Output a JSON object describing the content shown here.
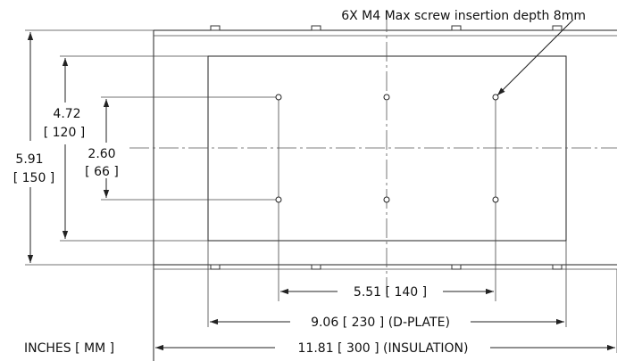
{
  "callout": {
    "holes": "6X M4 Max screw insertion depth 8mm"
  },
  "dimensions": {
    "height_outer": {
      "inches": "5.91",
      "mm": "[ 150 ]"
    },
    "height_middle": {
      "inches": "4.72",
      "mm": "[ 120 ]"
    },
    "height_inner": {
      "inches": "2.60",
      "mm": "[ 66 ]"
    },
    "width_holes": {
      "text": "5.51 [ 140 ]"
    },
    "width_dplate": {
      "text": "9.06 [ 230 ] (D-PLATE)"
    },
    "width_insulation": {
      "text": "11.81 [ 300 ] (INSULATION)"
    }
  },
  "units_label": "INCHES [ MM ]"
}
